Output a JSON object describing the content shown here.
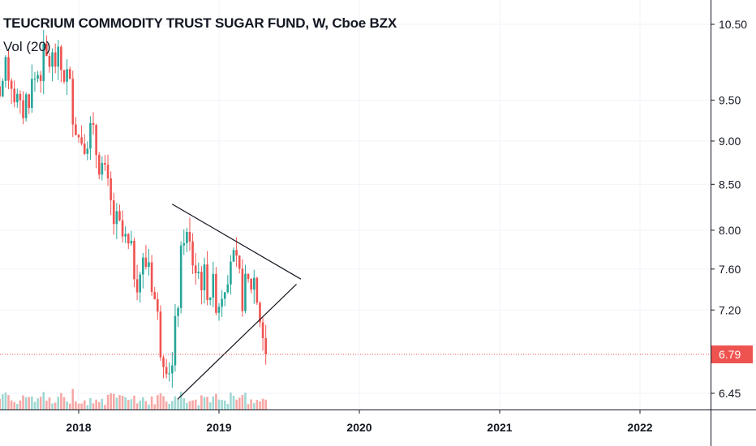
{
  "header": {
    "title": "TEUCRIUM COMMODITY TRUST SUGAR FUND, W, Cboe BZX",
    "indicator": "Vol (20)"
  },
  "colors": {
    "up": "#26a69a",
    "down": "#ef5350",
    "up_volume": "#9fd8d3",
    "down_volume": "#f6a8a6",
    "axis": "#131722",
    "grid": "#f0f3fa",
    "last_price": "#ef5350",
    "trendline": "#131722"
  },
  "chart_data": {
    "type": "candlestick",
    "title": "TEUCRIUM COMMODITY TRUST SUGAR FUND, W, Cboe BZX",
    "interval": "W",
    "y_scale": "log",
    "ylim": [
      6.3,
      10.7
    ],
    "y_ticks": [
      "10.50",
      "9.50",
      "9.00",
      "8.50",
      "8.00",
      "7.60",
      "7.20",
      "6.45"
    ],
    "x_ticks": [
      "2018",
      "2019",
      "2020",
      "2021",
      "2022"
    ],
    "x_range": [
      "2017-05-01",
      "2022-08-01"
    ],
    "last_price": "6.79",
    "grid": true,
    "series": [
      {
        "type": "candles",
        "approximate_weekly_closes": [
          [
            "2017-05-01",
            10.1
          ],
          [
            "2017-06-01",
            9.6
          ],
          [
            "2017-07-01",
            9.9
          ],
          [
            "2017-08-01",
            9.3
          ],
          [
            "2017-09-01",
            9.7
          ],
          [
            "2017-10-01",
            10.0
          ],
          [
            "2017-11-01",
            10.0
          ],
          [
            "2017-12-01",
            9.8
          ],
          [
            "2018-01-01",
            9.05
          ],
          [
            "2018-02-01",
            9.1
          ],
          [
            "2018-03-01",
            8.7
          ],
          [
            "2018-04-01",
            8.1
          ],
          [
            "2018-05-01",
            7.85
          ],
          [
            "2018-06-01",
            7.55
          ],
          [
            "2018-07-01",
            7.7
          ],
          [
            "2018-08-01",
            6.9
          ],
          [
            "2018-09-01",
            6.65
          ],
          [
            "2018-10-01",
            8.0
          ],
          [
            "2018-11-01",
            7.6
          ],
          [
            "2018-12-01",
            7.45
          ],
          [
            "2019-01-01",
            7.3
          ],
          [
            "2019-02-01",
            7.75
          ],
          [
            "2019-03-01",
            7.35
          ],
          [
            "2019-04-01",
            7.5
          ],
          [
            "2019-05-01",
            6.79
          ]
        ]
      },
      {
        "type": "volume",
        "name": "Vol (20)"
      }
    ],
    "annotations": [
      {
        "type": "triangle",
        "upper_line": [
          [
            "2018-09-01",
            8.28
          ],
          [
            "2019-08-01",
            7.5
          ]
        ],
        "lower_line": [
          [
            "2018-09-15",
            6.4
          ],
          [
            "2019-07-20",
            7.45
          ]
        ]
      }
    ]
  }
}
